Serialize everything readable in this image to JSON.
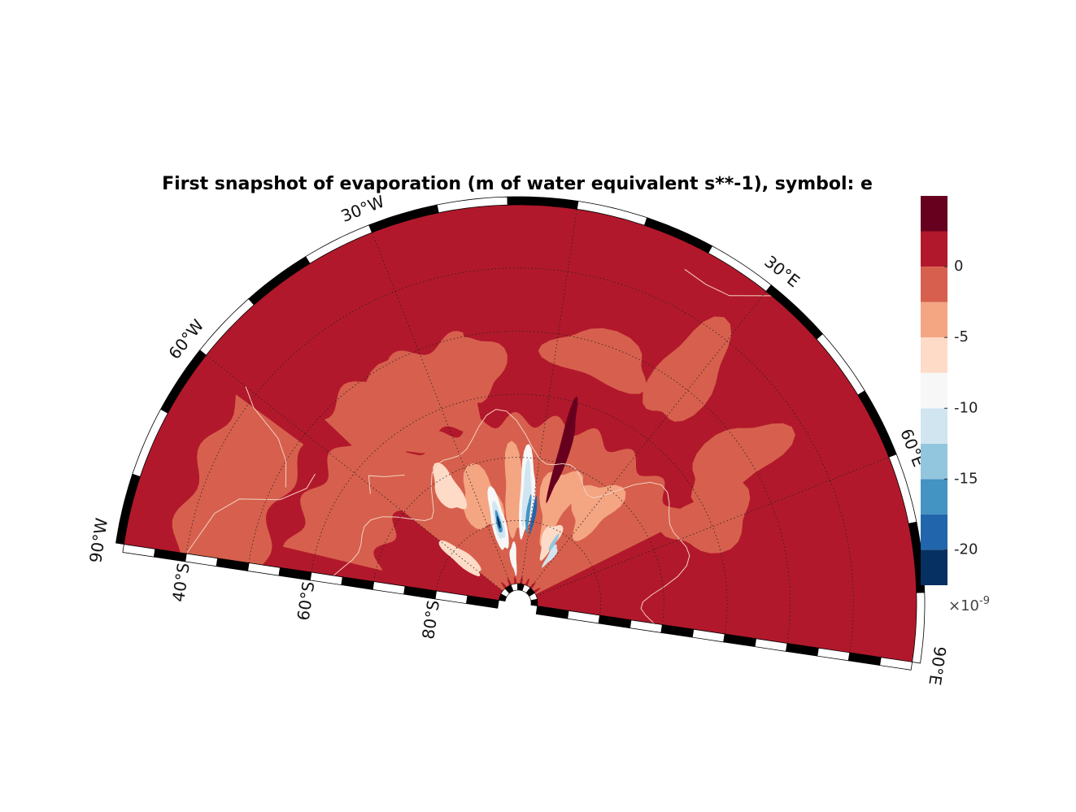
{
  "title": "First snapshot of evaporation (m of water equivalent s**-1), symbol: e",
  "map": {
    "projection": "polar stereographic (south)",
    "lon_range": [
      -90,
      90
    ],
    "lat_range": [
      -90,
      -30
    ],
    "ocean_color": "#b2182b",
    "coastline_color": "#f4d0c0",
    "frame_colors": [
      "#000000",
      "#ffffff"
    ],
    "lon_labels": [
      {
        "lon": -90,
        "text": "90°W"
      },
      {
        "lon": -60,
        "text": "60°W"
      },
      {
        "lon": -30,
        "text": "30°W"
      },
      {
        "lon": 30,
        "text": "30°E"
      },
      {
        "lon": 60,
        "text": "60°E"
      },
      {
        "lon": 90,
        "text": "90°E"
      }
    ],
    "lat_labels": [
      {
        "lat": -40,
        "text": "40°S"
      },
      {
        "lat": -60,
        "text": "60°S"
      },
      {
        "lat": -80,
        "text": "80°S"
      }
    ],
    "graticule_lats": [
      -40,
      -50,
      -60,
      -70,
      -80
    ],
    "graticule_lons": [
      -60,
      -30,
      0,
      30,
      60
    ]
  },
  "colorbar": {
    "levels": [
      -22.5,
      -20,
      -17.5,
      -15,
      -12.5,
      -10,
      -7.5,
      -5,
      -2.5,
      0,
      2.5,
      5
    ],
    "colors": [
      "#053061",
      "#2166ac",
      "#4393c3",
      "#92c5de",
      "#d1e5f0",
      "#f7f7f7",
      "#fddbc7",
      "#f4a582",
      "#d6604d",
      "#b2182b",
      "#67001f"
    ],
    "tick_labels": [
      {
        "value": 0,
        "text": "0"
      },
      {
        "value": -5,
        "text": "-5"
      },
      {
        "value": -10,
        "text": "-10"
      },
      {
        "value": -15,
        "text": "-15"
      },
      {
        "value": -20,
        "text": "-20"
      }
    ],
    "exponent": {
      "prefix": "×10",
      "power": "-9"
    }
  }
}
